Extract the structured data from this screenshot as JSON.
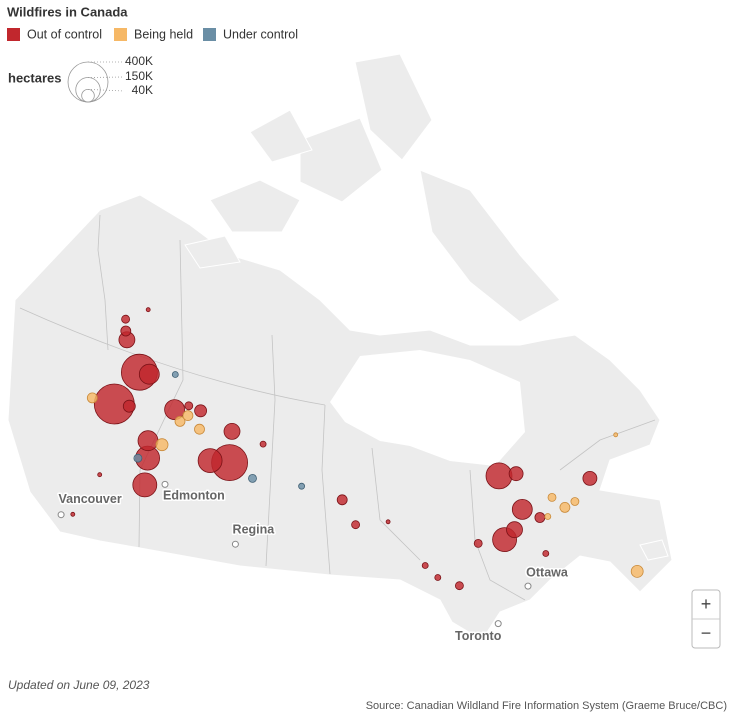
{
  "title": "Wildfires in Canada",
  "legend": {
    "statuses": [
      {
        "name": "Out of control",
        "color": "#c1272d"
      },
      {
        "name": "Being held",
        "color": "#f6b866"
      },
      {
        "name": "Under control",
        "color": "#6a8ea5"
      }
    ]
  },
  "size_legend": {
    "label": "hectares",
    "ticks": [
      {
        "value": 400000,
        "label": "400K"
      },
      {
        "value": 150000,
        "label": "150K"
      },
      {
        "value": 40000,
        "label": "40K"
      }
    ]
  },
  "cities": [
    {
      "name": "Vancouver",
      "lon": -123.1,
      "lat": 49.28
    },
    {
      "name": "Edmonton",
      "lon": -113.49,
      "lat": 53.55
    },
    {
      "name": "Regina",
      "lon": -104.6,
      "lat": 50.45
    },
    {
      "name": "Ottawa",
      "lon": -75.7,
      "lat": 45.42
    },
    {
      "name": "Toronto",
      "lon": -79.38,
      "lat": 43.65
    }
  ],
  "fires": [
    {
      "lon": -122.5,
      "lat": 57.66,
      "hectares": 400000,
      "status": "Out of control"
    },
    {
      "lon": -121.0,
      "lat": 60.35,
      "hectares": 324000,
      "status": "Out of control"
    },
    {
      "lon": -106.5,
      "lat": 55.92,
      "hectares": 324000,
      "status": "Out of control"
    },
    {
      "lon": -74.7,
      "lat": 53.07,
      "hectares": 169000,
      "status": "Out of control"
    },
    {
      "lon": -108.9,
      "lat": 55.83,
      "hectares": 144000,
      "status": "Out of control"
    },
    {
      "lon": -116.3,
      "lat": 54.95,
      "hectares": 144000,
      "status": "Out of control"
    },
    {
      "lon": -115.7,
      "lat": 53.14,
      "hectares": 144000,
      "status": "Out of control"
    },
    {
      "lon": -76.4,
      "lat": 48.87,
      "hectares": 144000,
      "status": "Out of control"
    },
    {
      "lon": -119.6,
      "lat": 60.47,
      "hectares": 100000,
      "status": "Out of control"
    },
    {
      "lon": -116.9,
      "lat": 56.1,
      "hectares": 100000,
      "status": "Out of control"
    },
    {
      "lon": -114.8,
      "lat": 58.69,
      "hectares": 100000,
      "status": "Out of control"
    },
    {
      "lon": -73.6,
      "lat": 50.38,
      "hectares": 100000,
      "status": "Out of control"
    },
    {
      "lon": -106.8,
      "lat": 58.07,
      "hectares": 64000,
      "status": "Out of control"
    },
    {
      "lon": -124.5,
      "lat": 62.08,
      "hectares": 64000,
      "status": "Out of control"
    },
    {
      "lon": -75.1,
      "lat": 49.28,
      "hectares": 64000,
      "status": "Out of control"
    },
    {
      "lon": -72.8,
      "lat": 52.79,
      "hectares": 49000,
      "status": "Out of control"
    },
    {
      "lon": -65.7,
      "lat": 50.38,
      "hectares": 49000,
      "status": "Out of control"
    },
    {
      "lon": -111.4,
      "lat": 59.06,
      "hectares": 36000,
      "status": "Out of control"
    },
    {
      "lon": -120.6,
      "lat": 57.91,
      "hectares": 36000,
      "status": "Out of control"
    },
    {
      "lon": -115.1,
      "lat": 56.12,
      "hectares": 36000,
      "status": "Being held"
    },
    {
      "lon": -65.9,
      "lat": 43.42,
      "hectares": 36000,
      "status": "Being held"
    },
    {
      "lon": -125.2,
      "lat": 62.6,
      "hectares": 25000,
      "status": "Out of control"
    },
    {
      "lon": -92.9,
      "lat": 53.68,
      "hectares": 25000,
      "status": "Out of control"
    },
    {
      "lon": -72.2,
      "lat": 49.43,
      "hectares": 25000,
      "status": "Out of control"
    },
    {
      "lon": -125.4,
      "lat": 57.42,
      "hectares": 25000,
      "status": "Being held"
    },
    {
      "lon": -113.7,
      "lat": 58.0,
      "hectares": 25000,
      "status": "Being held"
    },
    {
      "lon": -111.0,
      "lat": 57.8,
      "hectares": 25000,
      "status": "Being held"
    },
    {
      "lon": -69.4,
      "lat": 49.38,
      "hectares": 25000,
      "status": "Being held"
    },
    {
      "lon": -112.9,
      "lat": 58.53,
      "hectares": 25000,
      "status": "Being held"
    },
    {
      "lon": -126.0,
      "lat": 63.33,
      "hectares": 16000,
      "status": "Out of control"
    },
    {
      "lon": -91.6,
      "lat": 51.92,
      "hectares": 16000,
      "status": "Out of control"
    },
    {
      "lon": -113.1,
      "lat": 59.2,
      "hectares": 16000,
      "status": "Out of control"
    },
    {
      "lon": -82.0,
      "lat": 46.73,
      "hectares": 16000,
      "status": "Out of control"
    },
    {
      "lon": -79.1,
      "lat": 49.15,
      "hectares": 16000,
      "status": "Out of control"
    },
    {
      "lon": -68.2,
      "lat": 49.45,
      "hectares": 16000,
      "status": "Being held"
    },
    {
      "lon": -70.2,
      "lat": 50.36,
      "hectares": 16000,
      "status": "Being held"
    },
    {
      "lon": -103.5,
      "lat": 55.04,
      "hectares": 16000,
      "status": "Under control"
    },
    {
      "lon": -117.4,
      "lat": 54.74,
      "hectares": 16000,
      "status": "Under control"
    },
    {
      "lon": -71.4,
      "lat": 49.29,
      "hectares": 9000,
      "status": "Being held"
    },
    {
      "lon": -116.1,
      "lat": 61.03,
      "hectares": 9000,
      "status": "Under control"
    },
    {
      "lon": -97.6,
      "lat": 54.69,
      "hectares": 9000,
      "status": "Under control"
    },
    {
      "lon": -84.9,
      "lat": 48.54,
      "hectares": 9000,
      "status": "Out of control"
    },
    {
      "lon": -102.6,
      "lat": 57.46,
      "hectares": 9000,
      "status": "Out of control"
    },
    {
      "lon": -83.9,
      "lat": 47.58,
      "hectares": 9000,
      "status": "Out of control"
    },
    {
      "lon": -73.0,
      "lat": 47.04,
      "hectares": 9000,
      "status": "Out of control"
    },
    {
      "lon": -123.4,
      "lat": 64.59,
      "hectares": 4000,
      "status": "Out of control"
    },
    {
      "lon": -120.9,
      "lat": 52.79,
      "hectares": 4000,
      "status": "Out of control"
    },
    {
      "lon": -122.0,
      "lat": 49.61,
      "hectares": 4000,
      "status": "Out of control"
    },
    {
      "lon": -88.0,
      "lat": 51.87,
      "hectares": 4000,
      "status": "Out of control"
    },
    {
      "lon": -60.9,
      "lat": 52.05,
      "hectares": 4000,
      "status": "Being held"
    }
  ],
  "zoom": {
    "in": "+",
    "out": "−"
  },
  "footer": {
    "updated": "Updated on June 09, 2023",
    "source": "Source: Canadian Wildland Fire Information System (Graeme Bruce/CBC)"
  }
}
